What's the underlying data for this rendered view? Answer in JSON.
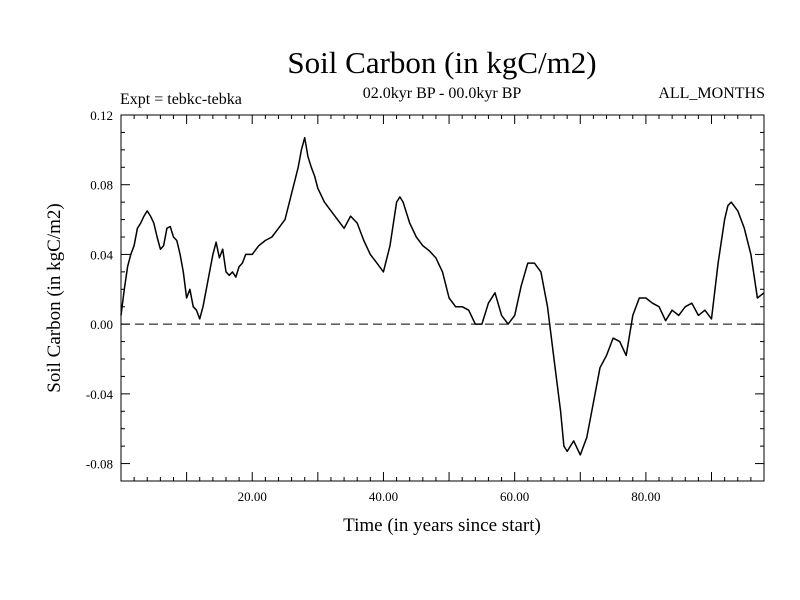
{
  "chart_data": {
    "type": "line",
    "title": "Soil Carbon (in kgC/m2)",
    "subtitle_left": "Expt = tebkc-tebka",
    "subtitle_center": "02.0kyr BP - 00.0kyr BP",
    "subtitle_right": "ALL_MONTHS",
    "xlabel": "Time (in years since start)",
    "ylabel": "Soil Carbon (in kgC/m2)",
    "xlim": [
      0,
      98
    ],
    "ylim": [
      -0.09,
      0.12
    ],
    "xticks": [
      20,
      40,
      60,
      80
    ],
    "xtick_labels": [
      "20.00",
      "40.00",
      "60.00",
      "80.00"
    ],
    "yticks": [
      0.12,
      0.08,
      0.04,
      0.0,
      -0.04,
      -0.08
    ],
    "ytick_labels": [
      "0.12",
      "0.08",
      "0.04",
      "0.00",
      "-0.04",
      "-0.08"
    ],
    "reference_line": {
      "y": 0,
      "style": "dashed"
    },
    "series": [
      {
        "x": [
          0,
          0.5,
          1,
          1.5,
          2,
          2.5,
          3,
          3.5,
          4,
          4.5,
          5,
          5.5,
          6,
          6.5,
          7,
          7.5,
          8,
          8.5,
          9,
          9.5,
          10,
          10.5,
          11,
          11.5,
          12,
          12.5,
          13,
          13.5,
          14,
          14.5,
          15,
          15.5,
          16,
          16.5,
          17,
          17.5,
          18,
          18.5,
          19,
          19.5,
          20,
          21,
          22,
          23,
          24,
          25,
          26,
          27,
          27.5,
          28,
          28.5,
          29,
          29.5,
          30,
          31,
          32,
          33,
          34,
          35,
          36,
          37,
          38,
          39,
          40,
          41,
          42,
          42.5,
          43,
          44,
          45,
          46,
          47,
          48,
          49,
          50,
          51,
          52,
          53,
          54,
          55,
          56,
          57,
          58,
          59,
          60,
          61,
          62,
          63,
          64,
          65,
          66,
          67,
          67.5,
          68,
          68.5,
          69,
          70,
          71,
          72,
          73,
          74,
          75,
          76,
          77,
          78,
          79,
          80,
          81,
          82,
          83,
          84,
          85,
          86,
          87,
          88,
          89,
          90,
          91,
          92,
          92.5,
          93,
          94,
          95,
          96,
          97,
          98
        ],
        "y": [
          0.005,
          0.02,
          0.033,
          0.04,
          0.045,
          0.055,
          0.058,
          0.062,
          0.065,
          0.062,
          0.058,
          0.05,
          0.043,
          0.045,
          0.055,
          0.056,
          0.05,
          0.048,
          0.04,
          0.03,
          0.015,
          0.02,
          0.01,
          0.008,
          0.003,
          0.01,
          0.02,
          0.03,
          0.04,
          0.047,
          0.038,
          0.043,
          0.03,
          0.028,
          0.03,
          0.027,
          0.033,
          0.035,
          0.04,
          0.04,
          0.04,
          0.045,
          0.048,
          0.05,
          0.055,
          0.06,
          0.075,
          0.09,
          0.1,
          0.107,
          0.096,
          0.09,
          0.085,
          0.078,
          0.07,
          0.065,
          0.06,
          0.055,
          0.062,
          0.058,
          0.048,
          0.04,
          0.035,
          0.03,
          0.045,
          0.07,
          0.073,
          0.07,
          0.058,
          0.05,
          0.045,
          0.042,
          0.038,
          0.03,
          0.015,
          0.01,
          0.01,
          0.008,
          0.0,
          0.0,
          0.012,
          0.018,
          0.005,
          0.0,
          0.005,
          0.022,
          0.035,
          0.035,
          0.03,
          0.01,
          -0.02,
          -0.05,
          -0.07,
          -0.073,
          -0.07,
          -0.067,
          -0.075,
          -0.065,
          -0.045,
          -0.025,
          -0.018,
          -0.008,
          -0.01,
          -0.018,
          0.005,
          0.015,
          0.015,
          0.012,
          0.01,
          0.002,
          0.008,
          0.005,
          0.01,
          0.012,
          0.005,
          0.008,
          0.003,
          0.035,
          0.06,
          0.068,
          0.07,
          0.065,
          0.055,
          0.04,
          0.015,
          0.018
        ]
      }
    ]
  }
}
